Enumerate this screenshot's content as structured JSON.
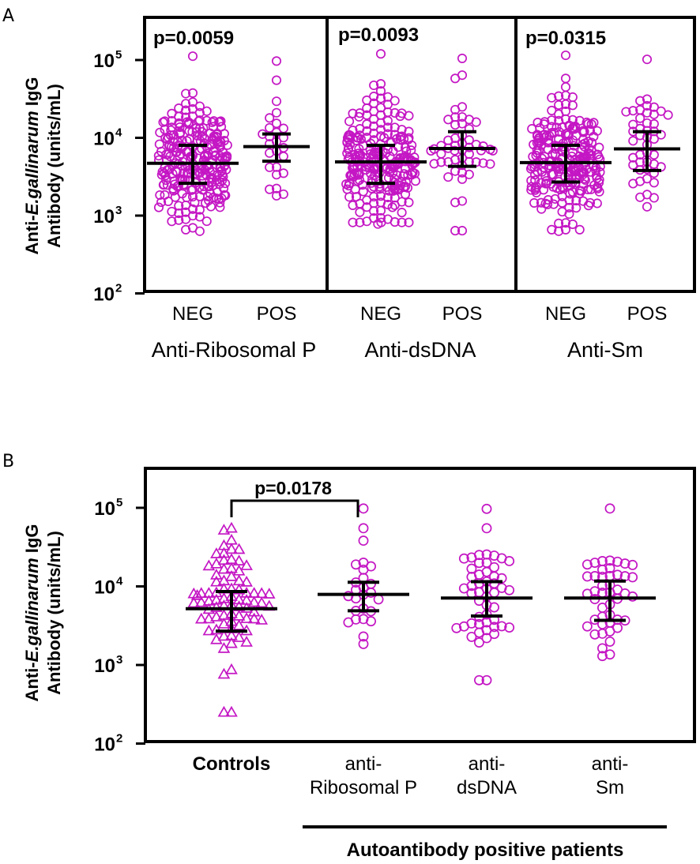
{
  "chart_data": [
    {
      "panel": "A",
      "type": "scatter",
      "y_scale": "log10",
      "ylim": [
        100,
        300000
      ],
      "ylabel_lines": [
        {
          "prefix": "Anti-",
          "italic": "E.gallinarum",
          "suffix": " IgG"
        },
        {
          "prefix": "Antibody (units/mL)",
          "italic": "",
          "suffix": ""
        }
      ],
      "yticks": [
        {
          "value": 100000,
          "base": "10",
          "exp": "5"
        },
        {
          "value": 10000,
          "base": "10",
          "exp": "4"
        },
        {
          "value": 1000,
          "base": "10",
          "exp": "3"
        },
        {
          "value": 100,
          "base": "10",
          "exp": "2"
        }
      ],
      "marker": "circle",
      "color": "#c417c4",
      "subpanels": [
        {
          "group_label": "Anti-Ribosomal P",
          "p_value": "p=0.0059",
          "groups": [
            {
              "label": "NEG",
              "n": 260,
              "median": 4700,
              "q1": 2600,
              "q3": 8000,
              "min": 630,
              "max": 112000,
              "outliers": [
                112000,
                37000,
                24000,
                22000,
                21000
              ]
            },
            {
              "label": "POS",
              "n": 26,
              "median": 7700,
              "q1": 5000,
              "q3": 11200,
              "min": 1800,
              "max": 97000,
              "outliers": [
                97000,
                55000,
                21000,
                18000
              ]
            }
          ]
        },
        {
          "group_label": "Anti-dsDNA",
          "p_value": "p=0.0093",
          "groups": [
            {
              "label": "NEG",
              "n": 250,
              "median": 4900,
              "q1": 2600,
              "q3": 8000,
              "min": 780,
              "max": 120000,
              "outliers": [
                120000,
                40000,
                30000,
                24000
              ]
            },
            {
              "label": "POS",
              "n": 52,
              "median": 7300,
              "q1": 4300,
              "q3": 12000,
              "min": 640,
              "max": 105000,
              "outliers": [
                105000,
                58000,
                25000,
                23000,
                640
              ]
            }
          ]
        },
        {
          "group_label": "Anti-Sm",
          "p_value": "p=0.0315",
          "groups": [
            {
              "label": "NEG",
              "n": 250,
              "median": 4800,
              "q1": 2700,
              "q3": 8000,
              "min": 630,
              "max": 115000,
              "outliers": [
                115000,
                58000,
                45000,
                35000,
                27000
              ]
            },
            {
              "label": "POS",
              "n": 46,
              "median": 7200,
              "q1": 3800,
              "q3": 12000,
              "min": 1300,
              "max": 102000,
              "outliers": [
                102000,
                22000,
                21000,
                20000
              ]
            }
          ]
        }
      ]
    },
    {
      "panel": "B",
      "type": "scatter",
      "y_scale": "log10",
      "ylim": [
        100,
        300000
      ],
      "ylabel_lines": [
        {
          "prefix": "Anti-",
          "italic": "E.gallinarum",
          "suffix": " IgG"
        },
        {
          "prefix": "Antibody (units/mL)",
          "italic": "",
          "suffix": ""
        }
      ],
      "yticks": [
        {
          "value": 100000,
          "base": "10",
          "exp": "5"
        },
        {
          "value": 10000,
          "base": "10",
          "exp": "4"
        },
        {
          "value": 1000,
          "base": "10",
          "exp": "3"
        },
        {
          "value": 100,
          "base": "10",
          "exp": "2"
        }
      ],
      "color": "#c417c4",
      "groups": [
        {
          "label_lines": [
            "Controls"
          ],
          "bold": true,
          "marker": "triangle",
          "n": 80,
          "median": 5200,
          "q1": 2700,
          "q3": 8600,
          "min": 250,
          "max": 55000,
          "outliers": [
            55000,
            52000,
            33000,
            26000,
            22000,
            250
          ]
        },
        {
          "label_lines": [
            "anti-",
            "Ribosomal P"
          ],
          "bold": false,
          "marker": "circle",
          "n": 26,
          "median": 7900,
          "q1": 4900,
          "q3": 11300,
          "min": 1850,
          "max": 98000,
          "outliers": [
            98000,
            55000,
            19000,
            18000
          ]
        },
        {
          "label_lines": [
            "anti-",
            "dsDNA"
          ],
          "bold": false,
          "marker": "circle",
          "n": 52,
          "median": 7100,
          "q1": 4200,
          "q3": 11500,
          "min": 640,
          "max": 97000,
          "outliers": [
            97000,
            55000,
            21000,
            20000,
            640
          ]
        },
        {
          "label_lines": [
            "anti-",
            "Sm"
          ],
          "bold": false,
          "marker": "circle",
          "n": 46,
          "median": 7100,
          "q1": 3700,
          "q3": 11700,
          "min": 1300,
          "max": 98000,
          "outliers": [
            98000,
            21000,
            20000,
            19000
          ]
        }
      ],
      "comparison": {
        "from_group": 0,
        "to_group": 1,
        "label": "p=0.0178"
      },
      "group_bracket_label": "Autoantibody positive patients"
    }
  ]
}
